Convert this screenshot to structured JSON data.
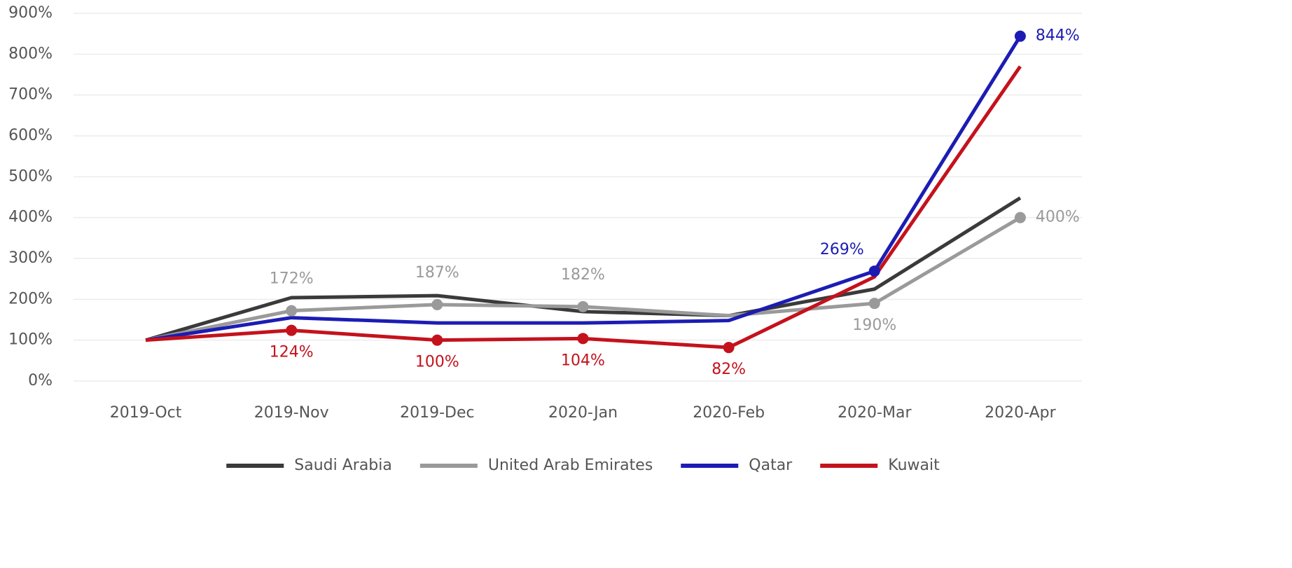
{
  "chart_data": {
    "type": "line",
    "categories": [
      "2019-Oct",
      "2019-Nov",
      "2019-Dec",
      "2020-Jan",
      "2020-Feb",
      "2020-Mar",
      "2020-Apr"
    ],
    "series": [
      {
        "name": "Saudi Arabia",
        "color": "#3a3a3a",
        "values": [
          100,
          204,
          209,
          170,
          160,
          225,
          448
        ]
      },
      {
        "name": "United Arab Emirates",
        "color": "#9a9a9a",
        "values": [
          100,
          172,
          187,
          182,
          160,
          190,
          400
        ],
        "value_labels": [
          null,
          "172%",
          "187%",
          "182%",
          null,
          "190%",
          "400%"
        ]
      },
      {
        "name": "Qatar",
        "color": "#1c1cb4",
        "values": [
          100,
          155,
          142,
          142,
          148,
          269,
          844
        ],
        "value_labels": [
          null,
          null,
          null,
          null,
          null,
          "269%",
          "844%"
        ]
      },
      {
        "name": "Kuwait",
        "color": "#c4121c",
        "values": [
          100,
          124,
          100,
          104,
          82,
          255,
          770
        ],
        "value_labels": [
          null,
          "124%",
          "100%",
          "104%",
          "82%",
          null,
          null
        ]
      }
    ],
    "ylim": [
      0,
      900
    ],
    "yticks": [
      {
        "value": 0,
        "label": "0%"
      },
      {
        "value": 100,
        "label": "100%"
      },
      {
        "value": 200,
        "label": "200%"
      },
      {
        "value": 300,
        "label": "300%"
      },
      {
        "value": 400,
        "label": "400%"
      },
      {
        "value": 500,
        "label": "500%"
      },
      {
        "value": 600,
        "label": "600%"
      },
      {
        "value": 700,
        "label": "700%"
      },
      {
        "value": 800,
        "label": "800%"
      },
      {
        "value": 900,
        "label": "900%"
      }
    ],
    "grid": true,
    "legend": "bottom"
  }
}
